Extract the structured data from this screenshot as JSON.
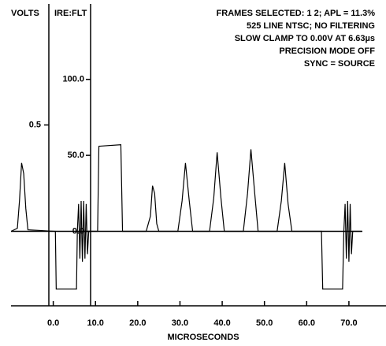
{
  "chart_data": {
    "type": "line",
    "x_label": "MICROSECONDS",
    "y_label": "IRE:FLT",
    "y2_label": "VOLTS",
    "annotations": [
      "FRAMES SELECTED: 1 2; APL = 11.3%",
      "525 LINE NTSC; NO FILTERING",
      "SLOW CLAMP TO 0.00V AT 6.63µs",
      "PRECISION MODE OFF",
      "SYNC = SOURCE"
    ],
    "x": [
      -10,
      -8.5,
      -8,
      -7.5,
      -7,
      -6.5,
      -6,
      0.5,
      0.7,
      5.5,
      5.7,
      6,
      6.3,
      6.6,
      6.9,
      7.2,
      7.5,
      7.8,
      8.1,
      8.4,
      10.5,
      10.8,
      16,
      16.4,
      22,
      23,
      23.5,
      24,
      24.5,
      25,
      29.5,
      30.5,
      31.3,
      32.2,
      33,
      37,
      38,
      38.8,
      39.7,
      40.5,
      45,
      46,
      46.8,
      47.7,
      48.5,
      53,
      54,
      54.8,
      55.6,
      56.5,
      63.5,
      63.8,
      68.5,
      68.8,
      69.1,
      69.4,
      69.7,
      70,
      70.3,
      70.6,
      70.9,
      73
    ],
    "series": [
      {
        "color": "#000000",
        "values": [
          0,
          2,
          20,
          45,
          38,
          15,
          1,
          0,
          -38,
          -38,
          0,
          18,
          -18,
          20,
          -20,
          20,
          -18,
          18,
          -15,
          0,
          0,
          56,
          57,
          0,
          0,
          10,
          30,
          25,
          5,
          0,
          0,
          20,
          45,
          20,
          0,
          0,
          22,
          52,
          22,
          0,
          0,
          25,
          54,
          25,
          0,
          0,
          20,
          45,
          18,
          0,
          0,
          -38,
          -38,
          0,
          18,
          -18,
          20,
          -20,
          18,
          -15,
          0,
          0
        ]
      }
    ],
    "xlim": [
      -10,
      73
    ],
    "xticks": [
      {
        "value": 0,
        "label": "0.0"
      },
      {
        "value": 10,
        "label": "10.0"
      },
      {
        "value": 20,
        "label": "20.0"
      },
      {
        "value": 30,
        "label": "30.0"
      },
      {
        "value": 40,
        "label": "40.0"
      },
      {
        "value": 50,
        "label": "50.0"
      },
      {
        "value": 60,
        "label": "60.0"
      },
      {
        "value": 70,
        "label": "70.0"
      }
    ],
    "ylim": [
      -49,
      146
    ],
    "yticks": [
      {
        "value": 0,
        "label": "0.0"
      },
      {
        "value": 50,
        "label": "50.0"
      },
      {
        "value": 100,
        "label": "100.0"
      }
    ],
    "y2lim": [
      -0.35,
      1.043
    ],
    "y2ticks": [
      0.5
    ]
  }
}
